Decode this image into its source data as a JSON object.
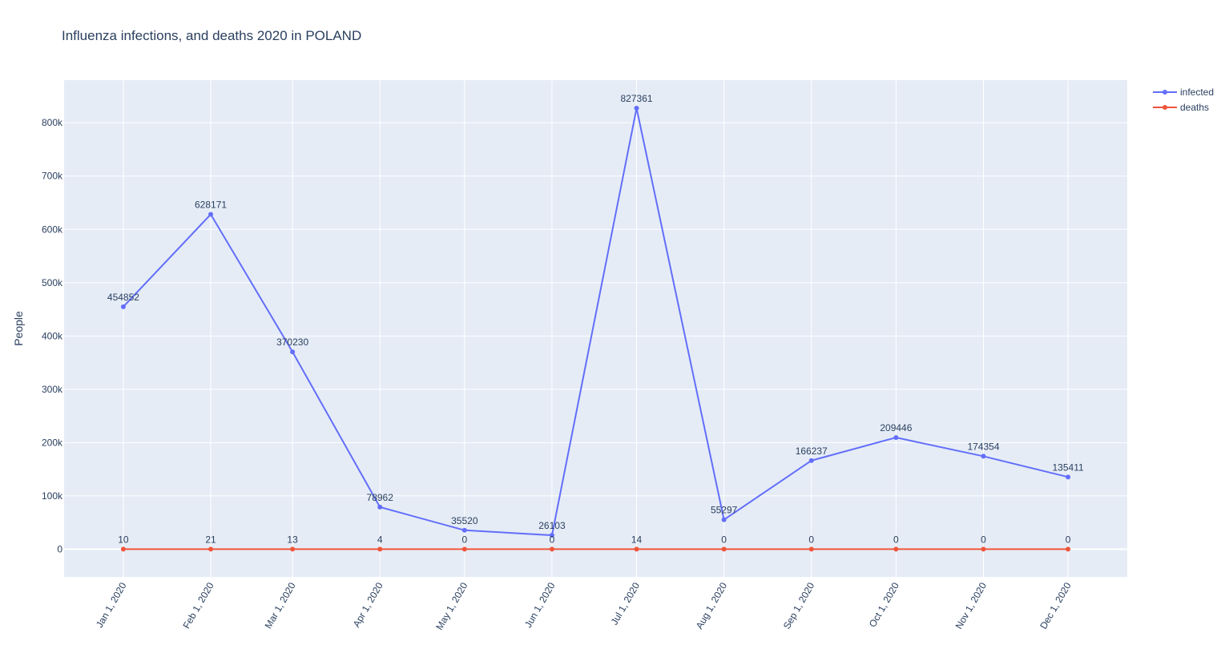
{
  "chart_data": {
    "type": "line",
    "title": "Influenza infections, and deaths 2020 in POLAND",
    "xlabel": "",
    "ylabel": "People",
    "categories": [
      "Jan 1, 2020",
      "Feb 1, 2020",
      "Mar 1, 2020",
      "Apr 1, 2020",
      "May 1, 2020",
      "Jun 1, 2020",
      "Jul 1, 2020",
      "Aug 1, 2020",
      "Sep 1, 2020",
      "Oct 1, 2020",
      "Nov 1, 2020",
      "Dec 1, 2020"
    ],
    "x": [
      "2020-01-01",
      "2020-02-01",
      "2020-03-01",
      "2020-04-01",
      "2020-05-01",
      "2020-06-01",
      "2020-07-01",
      "2020-08-01",
      "2020-09-01",
      "2020-10-01",
      "2020-11-01",
      "2020-12-01"
    ],
    "xlim": [
      "2019-12-11",
      "2020-12-22"
    ],
    "ylim": [
      -52000,
      880000
    ],
    "yticks": [
      0,
      100000,
      200000,
      300000,
      400000,
      500000,
      600000,
      700000,
      800000
    ],
    "ytick_labels": [
      "0",
      "100k",
      "200k",
      "300k",
      "400k",
      "500k",
      "600k",
      "700k",
      "800k"
    ],
    "grid": true,
    "legend_position": "top-right",
    "plot_bgcolor": "#E5ECF6",
    "series": [
      {
        "name": "infected",
        "color": "#636EFA",
        "values": [
          454852,
          628171,
          370230,
          78962,
          35520,
          26103,
          827361,
          55297,
          166237,
          209446,
          174354,
          135411
        ],
        "labels": [
          "454852",
          "628171",
          "370230",
          "78962",
          "35520",
          "26103",
          "827361",
          "55297",
          "166237",
          "209446",
          "174354",
          "135411"
        ]
      },
      {
        "name": "deaths",
        "color": "#EF553B",
        "values": [
          10,
          21,
          13,
          4,
          0,
          0,
          14,
          0,
          0,
          0,
          0,
          0
        ],
        "labels": [
          "10",
          "21",
          "13",
          "4",
          "0",
          "0",
          "14",
          "0",
          "0",
          "0",
          "0",
          "0"
        ]
      }
    ]
  }
}
